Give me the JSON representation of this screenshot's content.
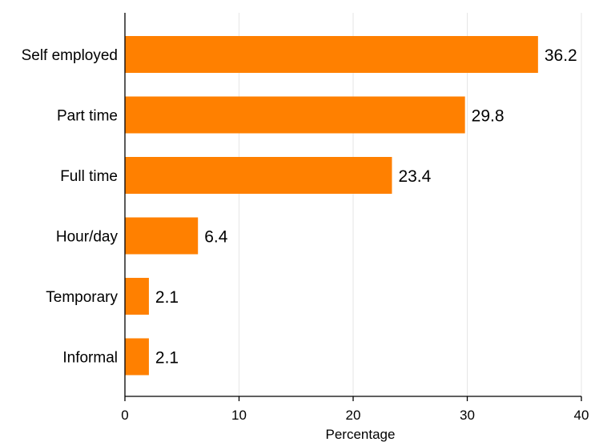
{
  "chart_data": {
    "type": "bar",
    "orientation": "horizontal",
    "categories": [
      "Self employed",
      "Part time",
      "Full time",
      "Hour/day",
      "Temporary",
      "Informal"
    ],
    "values": [
      36.2,
      29.8,
      23.4,
      6.4,
      2.1,
      2.1
    ],
    "value_labels": [
      "36.2",
      "29.8",
      "23.4",
      "6.4",
      "2.1",
      "2.1"
    ],
    "xlabel": "Percentage",
    "ylabel": "",
    "xlim": [
      0,
      40
    ],
    "xticks": [
      0,
      10,
      20,
      30,
      40
    ],
    "xtick_labels": [
      "0",
      "10",
      "20",
      "30",
      "40"
    ],
    "grid": "vertical",
    "legend": "none",
    "bar_color": "#ff8000",
    "grid_color": "#e6e6e6",
    "axis_color": "#000000"
  }
}
